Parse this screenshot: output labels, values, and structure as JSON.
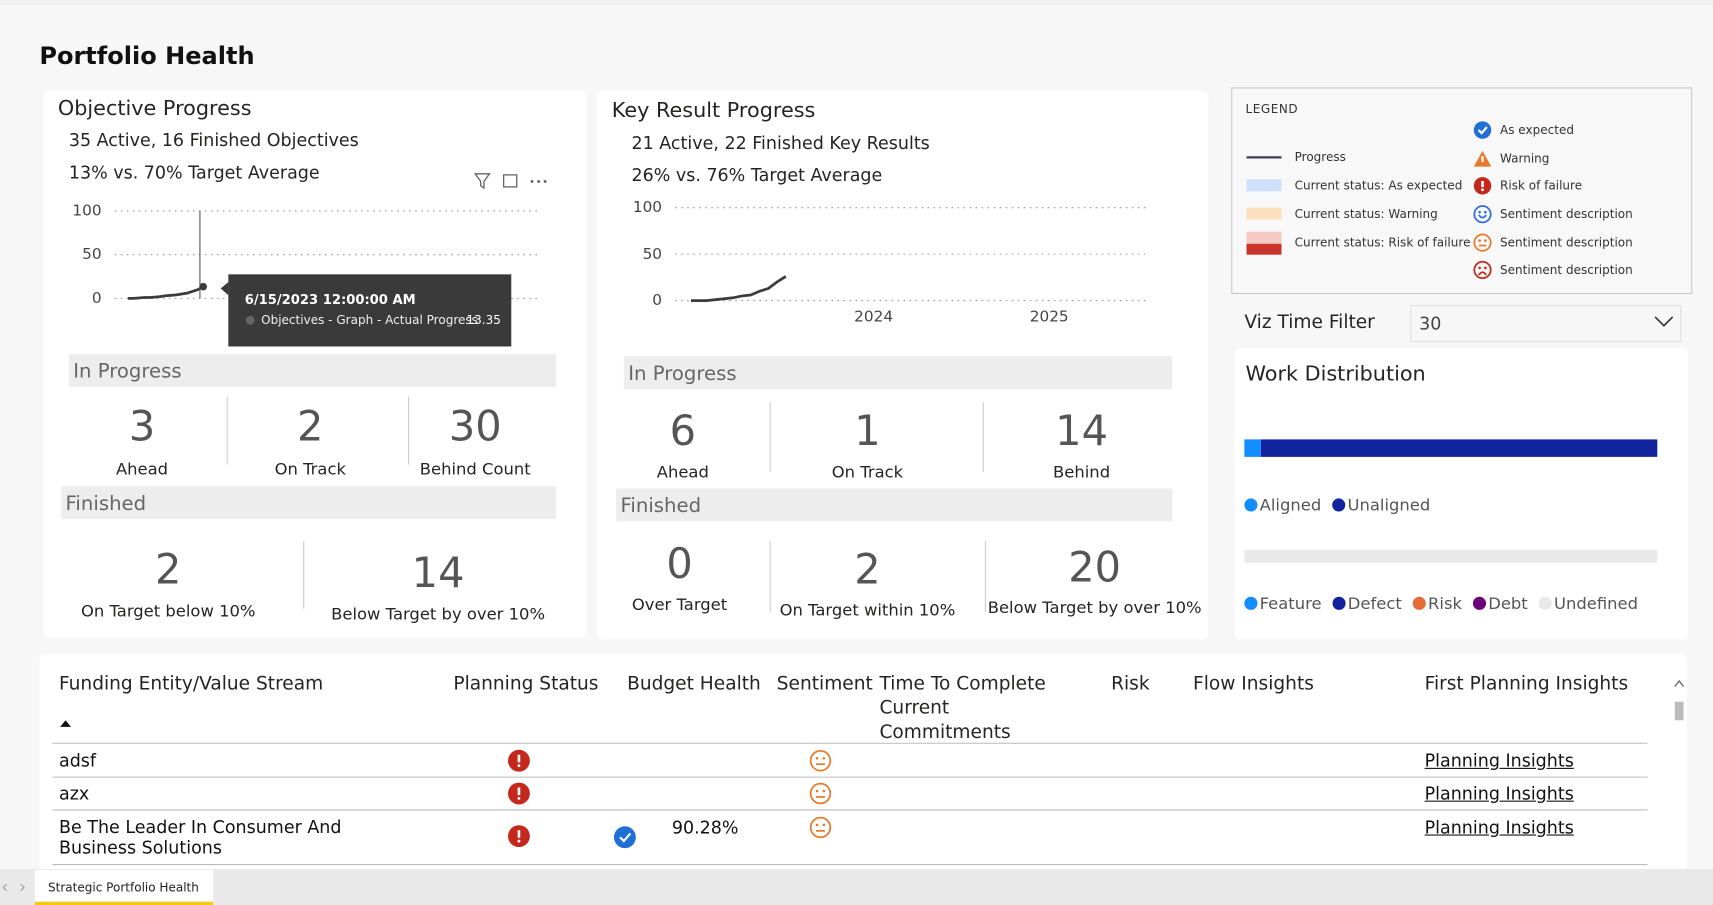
{
  "header": {
    "title": "Portfolio Health"
  },
  "objective_progress": {
    "title": "Objective Progress",
    "summary": "35 Active, 16 Finished Objectives",
    "target_average": "13% vs. 70% Target Average",
    "chart": {
      "type": "line",
      "color": "#3b3b3b",
      "values": [
        0,
        0,
        0.5,
        1,
        1,
        1.5,
        2,
        3,
        3.5,
        4,
        5,
        6,
        8,
        10,
        13.35
      ],
      "ylim": [
        0,
        100
      ],
      "yticks": [
        0,
        50,
        100
      ],
      "grid": true
    },
    "tooltip": {
      "date": "6/15/2023 12:00:00 AM",
      "series": "Objectives - Graph - Actual Progress",
      "value": 13.35
    },
    "in_progress": {
      "title": "In Progress",
      "kpis": [
        {
          "value": 3,
          "label": "Ahead"
        },
        {
          "value": 2,
          "label": "On Track"
        },
        {
          "value": 30,
          "label": "Behind Count"
        }
      ]
    },
    "finished": {
      "title": "Finished",
      "kpis": [
        {
          "value": 2,
          "label": "On Target below 10%"
        },
        {
          "value": 14,
          "label": "Below Target by over 10%"
        }
      ]
    }
  },
  "key_result_progress": {
    "title": "Key Result Progress",
    "summary": "21 Active, 22 Finished Key Results",
    "target_average": "26% vs. 76% Target Average",
    "chart": {
      "type": "line",
      "color": "#3b3b3b",
      "x": [
        2022.96,
        2023.05,
        2023.1,
        2023.15,
        2023.2,
        2023.25,
        2023.3,
        2023.35,
        2023.4,
        2023.45,
        2023.5
      ],
      "values": [
        0,
        0,
        1,
        2,
        3,
        5,
        6,
        10,
        13,
        20,
        26
      ],
      "xlim": [
        2022.87,
        2025.57
      ],
      "xticks": [
        2024,
        2025
      ],
      "ylim": [
        0,
        100
      ],
      "yticks": [
        0,
        50,
        100
      ],
      "grid": true
    },
    "in_progress": {
      "title": "In Progress",
      "kpis": [
        {
          "value": 6,
          "label": "Ahead"
        },
        {
          "value": 1,
          "label": "On Track"
        },
        {
          "value": 14,
          "label": "Behind"
        }
      ]
    },
    "finished": {
      "title": "Finished",
      "kpis": [
        {
          "value": 0,
          "label": "Over Target"
        },
        {
          "value": 2,
          "label": "On Target within 10%"
        },
        {
          "value": 20,
          "label": "Below Target by over 10%"
        }
      ]
    }
  },
  "legend": {
    "title": "LEGEND",
    "left": [
      "Progress",
      "Current status: As expected",
      "Current status: Warning",
      "Current status: Risk of failure"
    ],
    "right": [
      "As expected",
      "Warning",
      "Risk of failure",
      "Sentiment description",
      "Sentiment description",
      "Sentiment description"
    ]
  },
  "filter": {
    "label": "Viz Time Filter",
    "value": 30
  },
  "work_distribution": {
    "title": "Work Distribution",
    "charts": [
      {
        "type": "bar",
        "stacked": true,
        "xlim": [
          0,
          100
        ],
        "series": [
          {
            "name": "Aligned",
            "color": "#118dff",
            "values": [
              4
            ]
          },
          {
            "name": "Unaligned",
            "color": "#12239e",
            "values": [
              96
            ]
          }
        ]
      },
      {
        "type": "bar",
        "stacked": true,
        "xlim": [
          0,
          100
        ],
        "series": [
          {
            "name": "Feature",
            "color": "#118dff",
            "values": [
              0
            ]
          },
          {
            "name": "Defect",
            "color": "#12239e",
            "values": [
              0
            ]
          },
          {
            "name": "Risk",
            "color": "#e66c37",
            "values": [
              0
            ]
          },
          {
            "name": "Debt",
            "color": "#6b007b",
            "values": [
              0
            ]
          },
          {
            "name": "Undefined",
            "color": "#e9e9e9",
            "values": [
              100
            ]
          }
        ]
      }
    ]
  },
  "table": {
    "columns": [
      "Funding Entity/Value Stream",
      "Planning Status",
      "Budget Health",
      "Sentiment",
      "Time To Complete Current Commitments",
      "Risk",
      "Flow Insights",
      "First Planning Insights"
    ],
    "rows": [
      {
        "name": "adsf",
        "planning_status": "risk",
        "sentiment": "neutral",
        "link": "Planning Insights"
      },
      {
        "name": "azx",
        "planning_status": "risk",
        "sentiment": "neutral",
        "link": "Planning Insights"
      },
      {
        "name": "Be The Leader In Consumer And Business Solutions",
        "planning_status": "risk",
        "budget_status": "expected",
        "budget_health": "90.28%",
        "sentiment": "neutral",
        "link": "Planning Insights"
      }
    ]
  },
  "tabs": [
    "Strategic Portfolio Health"
  ]
}
